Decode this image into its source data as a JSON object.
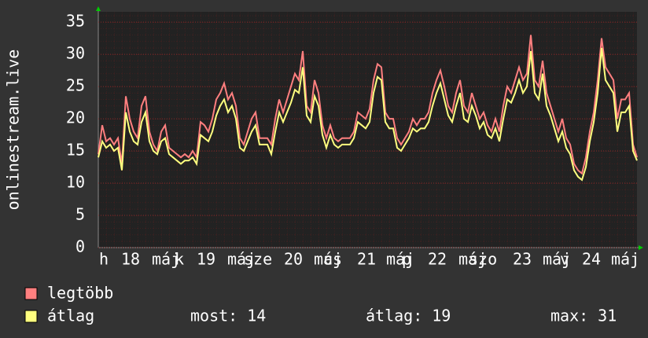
{
  "chart_data": {
    "type": "line",
    "ylabel": "onlinestream.live",
    "x_labels": [
      "h",
      "18",
      "máj",
      "k",
      "19",
      "máj",
      "sze",
      "20",
      "máj",
      "cs",
      "21",
      "máj",
      "p",
      "22",
      "máj",
      "szo",
      "23",
      "máj",
      "v",
      "24",
      "máj"
    ],
    "ylim": [
      0,
      36.6
    ],
    "yticks": [
      0,
      5,
      10,
      15,
      20,
      25,
      30,
      35
    ],
    "grid": true,
    "series": [
      {
        "name": "legtöbb",
        "color": "#ff7f7f",
        "values": [
          14.5,
          19,
          16.5,
          17,
          16,
          17,
          13,
          23.5,
          20,
          18,
          17,
          22,
          23.5,
          18,
          16,
          15,
          18,
          19,
          15.5,
          15,
          14.5,
          14,
          14.5,
          14,
          15,
          14,
          19.5,
          19,
          18,
          20,
          23,
          24,
          25.5,
          23,
          24,
          22,
          17,
          16,
          18,
          20,
          21,
          17,
          17,
          17,
          16,
          20,
          23,
          21,
          23,
          25,
          27,
          26,
          30.5,
          22,
          21,
          26,
          24,
          19,
          17,
          19,
          17,
          16.5,
          17,
          17,
          17,
          18,
          21,
          20.5,
          20,
          21.5,
          26,
          28.5,
          28,
          21,
          20,
          20,
          17,
          16,
          17,
          18,
          20,
          19,
          20,
          20,
          21,
          24,
          26,
          27.5,
          25,
          22,
          21,
          24,
          26,
          22,
          21,
          24,
          22,
          20,
          21,
          19,
          18,
          20,
          18,
          22,
          25,
          24,
          26,
          28,
          26,
          27,
          33,
          26,
          25,
          29,
          24,
          22,
          20,
          18,
          20,
          17,
          16,
          13,
          12,
          11.5,
          14,
          18,
          21,
          26,
          32.5,
          28,
          27,
          26,
          20,
          23,
          23,
          24,
          16,
          14
        ]
      },
      {
        "name": "átlag",
        "color": "#ffff7f",
        "values": [
          14,
          16.5,
          15.5,
          16,
          15,
          15.5,
          12,
          21,
          18,
          16.5,
          16,
          19.5,
          21,
          16.5,
          15,
          14.5,
          16.5,
          17,
          14.5,
          14,
          13.5,
          13,
          13.5,
          13.5,
          14,
          13,
          17.5,
          17,
          16.5,
          18,
          20.5,
          22,
          23,
          21,
          22,
          20,
          15.5,
          15,
          16.5,
          18,
          19,
          16,
          16,
          16,
          14.5,
          18,
          21,
          19.5,
          21,
          22.5,
          24.5,
          24,
          28,
          20.5,
          19.5,
          23.5,
          22,
          17.5,
          15.5,
          17.5,
          16,
          15.5,
          16,
          16,
          16,
          17,
          19.5,
          19,
          18.5,
          19.5,
          24,
          26.5,
          26,
          19.5,
          18.5,
          18.5,
          15.5,
          15,
          16,
          17,
          18.5,
          18,
          18.5,
          18.5,
          19.5,
          22,
          24,
          25.5,
          23,
          20.5,
          19.5,
          22,
          24,
          20,
          19.5,
          22,
          20.5,
          18.5,
          19.5,
          17.5,
          17,
          18.5,
          16.5,
          20,
          23,
          22.5,
          24,
          26,
          24,
          25,
          30.5,
          24,
          23,
          27,
          22,
          20.5,
          18.5,
          16.5,
          18,
          15.5,
          14.5,
          12,
          11,
          10.5,
          12.5,
          16.5,
          19.5,
          24,
          31,
          26,
          25,
          24,
          18,
          21,
          21,
          22,
          15,
          13.5
        ]
      }
    ],
    "stats": [
      {
        "label": "most:",
        "value": 14
      },
      {
        "label": "átlag:",
        "value": 19
      },
      {
        "label": "max:",
        "value": 31
      }
    ]
  }
}
